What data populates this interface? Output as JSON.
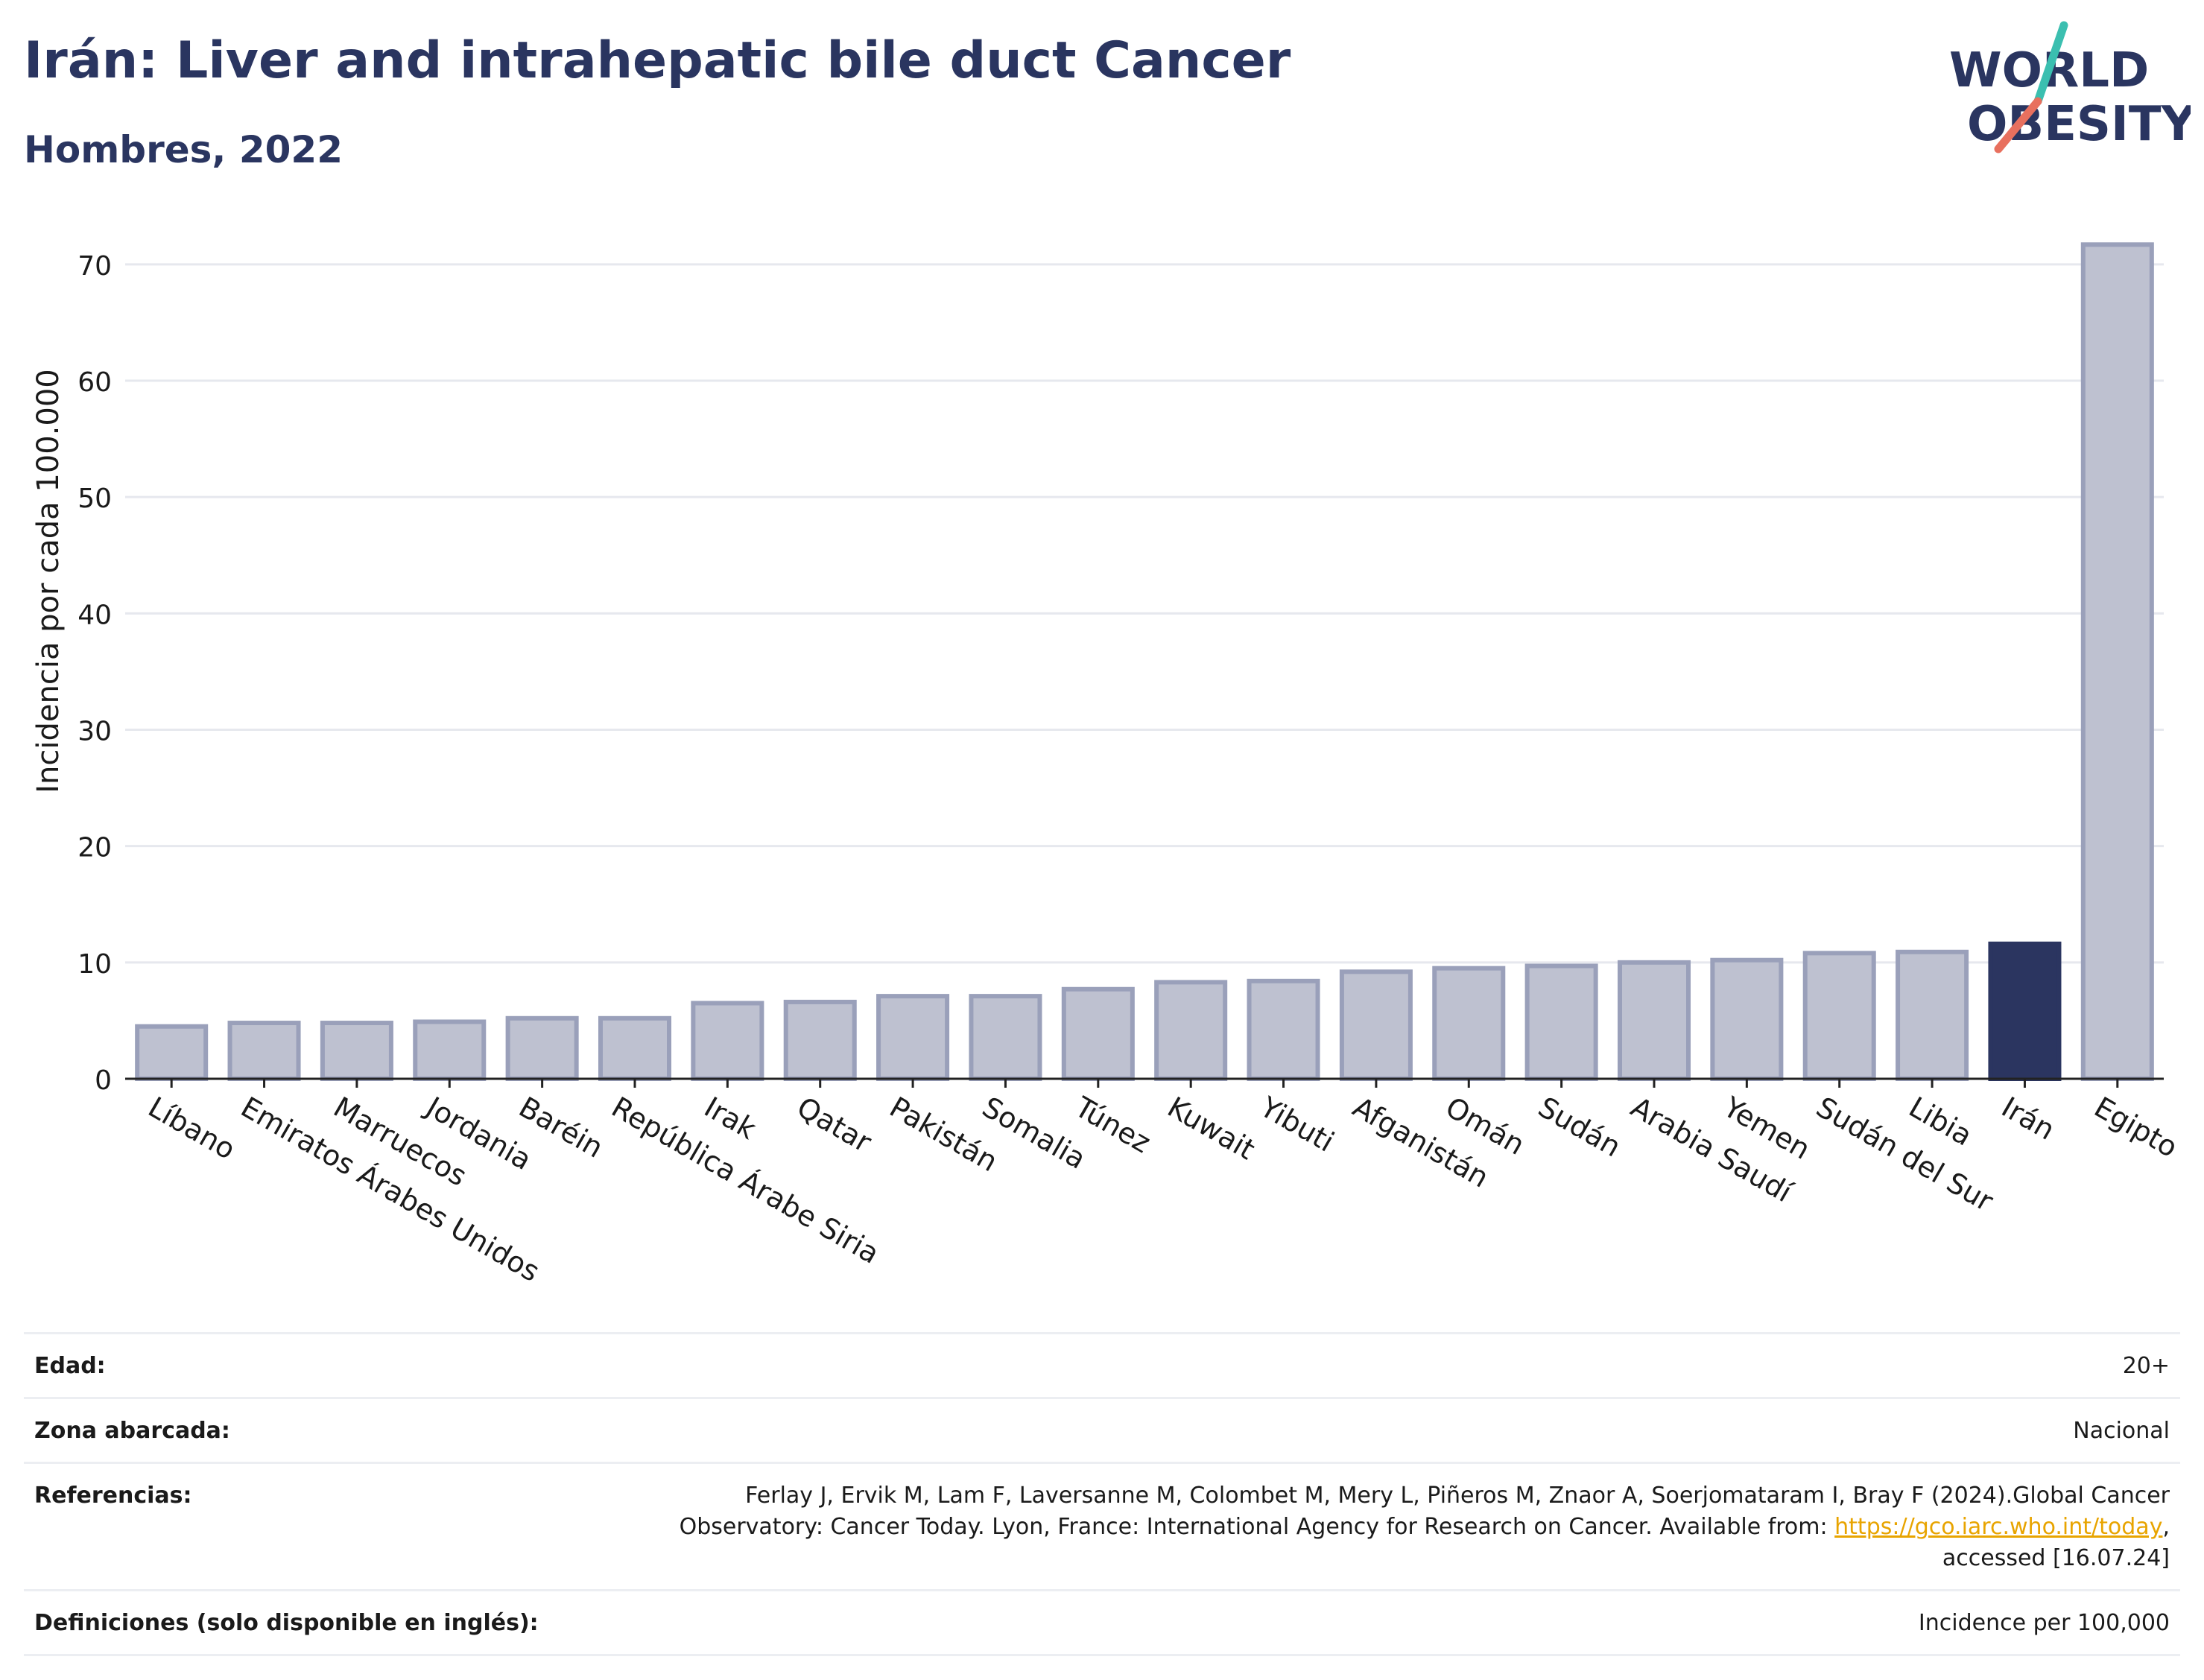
{
  "header": {
    "title": "Irán: Liver and intrahepatic bile duct Cancer",
    "subtitle": "Hombres, 2022",
    "logo_line1": "WORLD",
    "logo_line2": "OBESITY"
  },
  "colors": {
    "title": "#2a3560",
    "highlight_bar": "#2b3560",
    "bar_fill": "#bec1d0",
    "bar_stroke": "#9aa0ba",
    "logo_teal": "#3bbfb0",
    "logo_coral": "#e8705e",
    "link": "#e8a400"
  },
  "chart_data": {
    "type": "bar",
    "ylabel": "Incidencia por cada 100.000",
    "xlabel": "",
    "ylim": [
      0,
      73
    ],
    "yticks": [
      0,
      10,
      20,
      30,
      40,
      50,
      60,
      70
    ],
    "grid": true,
    "highlight": "Irán",
    "categories": [
      "Líbano",
      "Emiratos Árabes Unidos",
      "Marruecos",
      "Jordania",
      "Baréin",
      "República Árabe Siria",
      "Irak",
      "Qatar",
      "Pakistán",
      "Somalia",
      "Túnez",
      "Kuwait",
      "Yibuti",
      "Afganistán",
      "Omán",
      "Sudán",
      "Arabia Saudí",
      "Yemen",
      "Sudán del Sur",
      "Libia",
      "Irán",
      "Egipto"
    ],
    "values": [
      4.5,
      4.8,
      4.8,
      4.9,
      5.2,
      5.2,
      6.5,
      6.6,
      7.1,
      7.1,
      7.7,
      8.3,
      8.4,
      9.2,
      9.5,
      9.7,
      10.0,
      10.2,
      10.8,
      10.9,
      11.6,
      71.7
    ]
  },
  "info": {
    "age_label": "Edad:",
    "age_value": "20+",
    "area_label": "Zona abarcada:",
    "area_value": "Nacional",
    "refs_label": "Referencias:",
    "refs_line1": "Ferlay J, Ervik M, Lam F, Laversanne M, Colombet M, Mery L, Piñeros M, Znaor A, Soerjomataram I, Bray F (2024).Global Cancer",
    "refs_line2_pre": "Observatory: Cancer Today. Lyon, France: International Agency for Research on Cancer. Available from: ",
    "refs_link": "https://gco.iarc.who.int/today",
    "refs_line2_post": ",",
    "refs_line3": "accessed [16.07.24]",
    "defs_label": "Definiciones (solo disponible en inglés):",
    "defs_value": "Incidence per 100,000"
  }
}
